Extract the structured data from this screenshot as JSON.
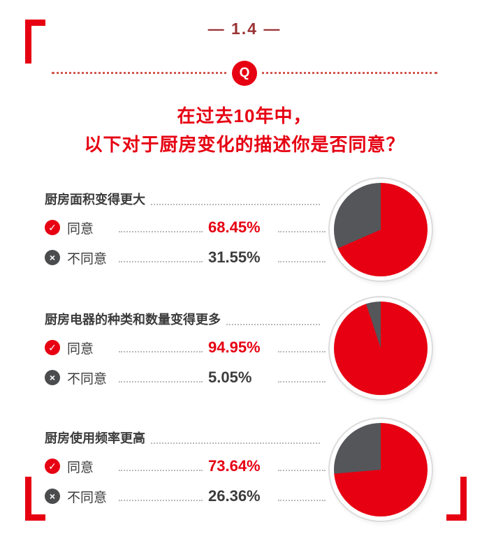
{
  "colors": {
    "accent_red": "#e60012",
    "pie_gray": "#55565a",
    "title_maroon": "#9a3334"
  },
  "header": {
    "title": "— 1.4 —",
    "q_badge": "Q"
  },
  "question": {
    "line1": "在过去10年中，",
    "line2": "以下对于厨房变化的描述你是否同意？"
  },
  "answers": {
    "agree": "同意",
    "disagree": "不同意"
  },
  "icons": {
    "agree_glyph": "✓",
    "disagree_glyph": "×"
  },
  "sections": [
    {
      "statement": "厨房面积变得更大",
      "agree_pct": "68.45%",
      "disagree_pct": "31.55%"
    },
    {
      "statement": "厨房电器的种类和数量变得更多",
      "agree_pct": "94.95%",
      "disagree_pct": "5.05%"
    },
    {
      "statement": "厨房使用频率更高",
      "agree_pct": "73.64%",
      "disagree_pct": "26.36%"
    }
  ],
  "chart_data": [
    {
      "type": "pie",
      "title": "厨房面积变得更大",
      "labels": [
        "同意",
        "不同意"
      ],
      "values": [
        68.45,
        31.55
      ],
      "colors": [
        "#e60012",
        "#55565a"
      ],
      "start_angle": "top",
      "direction": "clockwise",
      "legend_position": "none"
    },
    {
      "type": "pie",
      "title": "厨房电器的种类和数量变得更多",
      "labels": [
        "同意",
        "不同意"
      ],
      "values": [
        94.95,
        5.05
      ],
      "colors": [
        "#e60012",
        "#55565a"
      ],
      "start_angle": "top",
      "direction": "clockwise",
      "legend_position": "none"
    },
    {
      "type": "pie",
      "title": "厨房使用频率更高",
      "labels": [
        "同意",
        "不同意"
      ],
      "values": [
        73.64,
        26.36
      ],
      "colors": [
        "#e60012",
        "#55565a"
      ],
      "start_angle": "top",
      "direction": "clockwise",
      "legend_position": "none"
    }
  ]
}
